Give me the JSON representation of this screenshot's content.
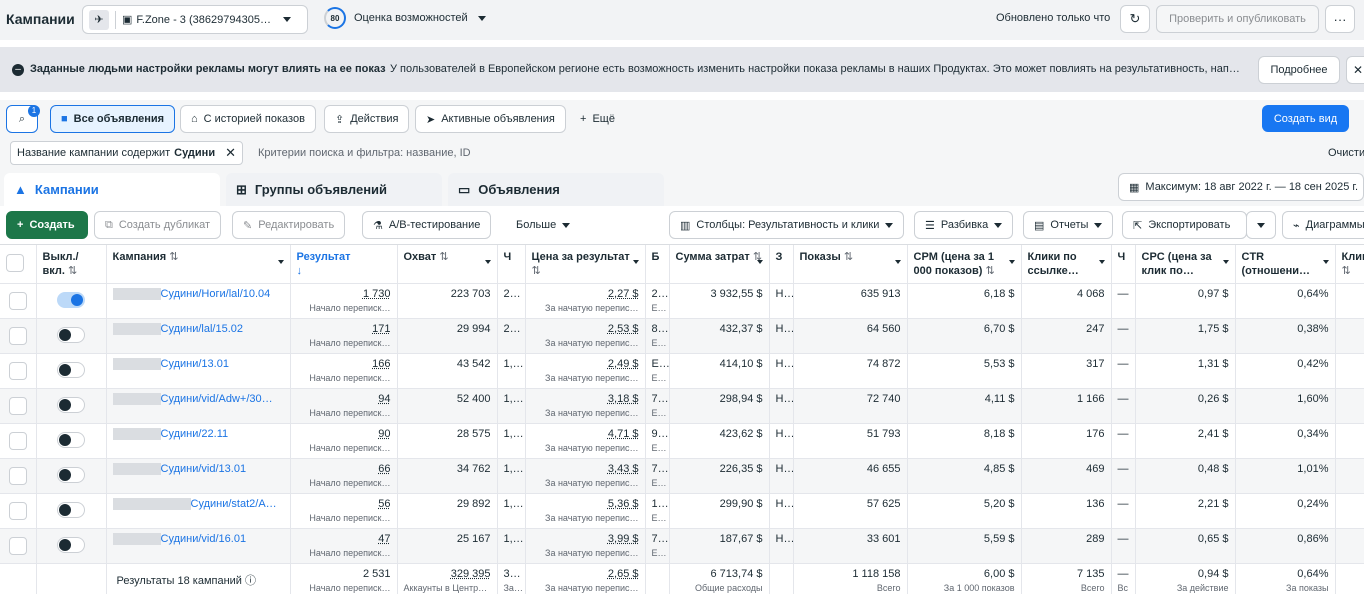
{
  "header": {
    "title": "Кампании",
    "account": "F.Zone - 3 (38629794305…",
    "score": "80",
    "score_label": "Оценка возможностей",
    "updated": "Обновлено только что",
    "publish": "Проверить и опубликовать",
    "more": "···"
  },
  "banner": {
    "title": "Заданные людьми настройки рекламы могут влиять на ее показ",
    "text": "У пользователей в Европейском регионе есть возможность изменить настройки показа рекламы в наших Продуктах. Это может повлиять на результативность, напри…",
    "more": "Подробнее",
    "close": "✕"
  },
  "filters": {
    "badge": "1",
    "all": "Все объявления",
    "history": "С историей показов",
    "actions": "Действия",
    "active": "Активные объявления",
    "more": "Ещё",
    "create_view": "Создать вид"
  },
  "search": {
    "chip_prefix": "Название кампании содержит",
    "chip_value": "Судини",
    "placeholder": "Критерии поиска и фильтра: название, ID",
    "clear": "Очисти"
  },
  "tabs": {
    "campaigns": "Кампании",
    "adsets": "Группы объявлений",
    "ads": "Объявления",
    "date": "Максимум: 18 авг 2022 г. — 18 сен 2025 г."
  },
  "toolbar": {
    "create": "Создать",
    "duplicate": "Создать дубликат",
    "edit": "Редактировать",
    "ab": "A/B-тестирование",
    "more": "Больше",
    "columns": "Столбцы: Результативность и клики",
    "breakdown": "Разбивка",
    "reports": "Отчеты",
    "export": "Экспортировать",
    "charts": "Диаграммы"
  },
  "columns": {
    "toggle": "Выкл./вкл.",
    "campaign": "Кампания",
    "result": "Результат",
    "reach": "Охват",
    "cpr": "Цена за результат",
    "spend": "Сумма затрат",
    "impr": "Показы",
    "cpm": "CPM (цена за 1 000 показов)",
    "linkclicks": "Клики по ссылке…",
    "cpc": "CPC (цена за клик по…",
    "ctr": "CTR (отношени…",
    "clicks": "Клики (в",
    "c6": "Ч",
    "c8": "Б",
    "c10": "З",
    "c14": "Ч"
  },
  "rows": [
    {
      "on": true,
      "name": "Судини/Ноги/lal/10.04",
      "result": "1 730",
      "result_sub": "Начало переписк…",
      "reach": "223 703",
      "freq": "2…",
      "cpr": "2,27 $",
      "cpr_sub": "За начатую перепис…",
      "b": "2…",
      "b_sub": "Е…",
      "spend": "3 932,55 $",
      "z": "Н…",
      "impr": "635 913",
      "cpm": "6,18 $",
      "lc": "4 068",
      "dash": "—",
      "cpc": "0,97 $",
      "ctr": "0,64%"
    },
    {
      "on": false,
      "name": "Судини/lal/15.02",
      "result": "171",
      "result_sub": "Начало переписк…",
      "reach": "29 994",
      "freq": "2…",
      "cpr": "2,53 $",
      "cpr_sub": "За начатую перепис…",
      "b": "8…",
      "b_sub": "Е…",
      "spend": "432,37 $",
      "z": "Н…",
      "impr": "64 560",
      "cpm": "6,70 $",
      "lc": "247",
      "dash": "—",
      "cpc": "1,75 $",
      "ctr": "0,38%"
    },
    {
      "on": false,
      "name": "Судини/13.01",
      "result": "166",
      "result_sub": "Начало переписк…",
      "reach": "43 542",
      "freq": "1,…",
      "cpr": "2,49 $",
      "cpr_sub": "За начатую перепис…",
      "b": "E…",
      "b_sub": "Е…",
      "spend": "414,10 $",
      "z": "Н…",
      "impr": "74 872",
      "cpm": "5,53 $",
      "lc": "317",
      "dash": "—",
      "cpc": "1,31 $",
      "ctr": "0,42%"
    },
    {
      "on": false,
      "name": "Судини/vid/Adw+/30…",
      "result": "94",
      "result_sub": "Начало переписк…",
      "reach": "52 400",
      "freq": "1,…",
      "cpr": "3,18 $",
      "cpr_sub": "За начатую перепис…",
      "b": "7…",
      "b_sub": "Е…",
      "spend": "298,94 $",
      "z": "Н…",
      "impr": "72 740",
      "cpm": "4,11 $",
      "lc": "1 166",
      "dash": "—",
      "cpc": "0,26 $",
      "ctr": "1,60%"
    },
    {
      "on": false,
      "name": "Судини/22.11",
      "result": "90",
      "result_sub": "Начало переписк…",
      "reach": "28 575",
      "freq": "1,…",
      "cpr": "4,71 $",
      "cpr_sub": "За начатую перепис…",
      "b": "9…",
      "b_sub": "Е…",
      "spend": "423,62 $",
      "z": "Н…",
      "impr": "51 793",
      "cpm": "8,18 $",
      "lc": "176",
      "dash": "—",
      "cpc": "2,41 $",
      "ctr": "0,34%"
    },
    {
      "on": false,
      "name": "Судини/vid/13.01",
      "result": "66",
      "result_sub": "Начало переписк…",
      "reach": "34 762",
      "freq": "1,…",
      "cpr": "3,43 $",
      "cpr_sub": "За начатую перепис…",
      "b": "7…",
      "b_sub": "Е…",
      "spend": "226,35 $",
      "z": "Н…",
      "impr": "46 655",
      "cpm": "4,85 $",
      "lc": "469",
      "dash": "—",
      "cpc": "0,48 $",
      "ctr": "1,01%"
    },
    {
      "on": false,
      "name": "Судини/stat2/A…",
      "result": "56",
      "result_sub": "Начало переписк…",
      "reach": "29 892",
      "freq": "1,…",
      "cpr": "5,36 $",
      "cpr_sub": "За начатую перепис…",
      "b": "1…",
      "b_sub": "Е…",
      "spend": "299,90 $",
      "z": "Н…",
      "impr": "57 625",
      "cpm": "5,20 $",
      "lc": "136",
      "dash": "—",
      "cpc": "2,21 $",
      "ctr": "0,24%"
    },
    {
      "on": false,
      "name": "Судини/vid/16.01",
      "result": "47",
      "result_sub": "Начало переписк…",
      "reach": "25 167",
      "freq": "1,…",
      "cpr": "3,99 $",
      "cpr_sub": "За начатую перепис…",
      "b": "7…",
      "b_sub": "Е…",
      "spend": "187,67 $",
      "z": "Н…",
      "impr": "33 601",
      "cpm": "5,59 $",
      "lc": "289",
      "dash": "—",
      "cpc": "0,65 $",
      "ctr": "0,86%"
    }
  ],
  "totals": {
    "label": "Результаты 18 кампаний",
    "result": "2 531",
    "result_sub": "Начало переписк…",
    "reach": "329 395",
    "reach_sub": "Аккаунты в Центр…",
    "freq": "3…",
    "freq_sub": "За…",
    "cpr": "2,65 $",
    "cpr_sub": "За начатую перепис…",
    "spend": "6 713,74 $",
    "spend_sub": "Общие расходы",
    "impr": "1 118 158",
    "impr_sub": "Всего",
    "cpm": "6,00 $",
    "cpm_sub": "За 1 000 показов",
    "lc": "7 135",
    "lc_sub": "Всего",
    "dash": "—",
    "dash_sub": "Вс",
    "cpc": "0,94 $",
    "cpc_sub": "За действие",
    "ctr": "0,64%",
    "ctr_sub": "За показы"
  }
}
